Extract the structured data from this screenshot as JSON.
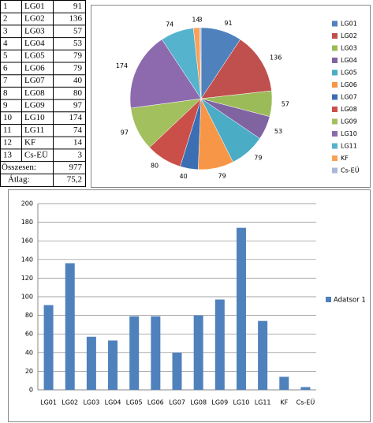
{
  "table": {
    "rows": [
      [
        1,
        "LG01",
        91
      ],
      [
        2,
        "LG02",
        136
      ],
      [
        3,
        "LG03",
        57
      ],
      [
        4,
        "LG04",
        53
      ],
      [
        5,
        "LG05",
        79
      ],
      [
        6,
        "LG06",
        79
      ],
      [
        7,
        "LG07",
        40
      ],
      [
        8,
        "LG08",
        80
      ],
      [
        9,
        "LG09",
        97
      ],
      [
        10,
        "LG10",
        174
      ],
      [
        11,
        "LG11",
        74
      ],
      [
        12,
        "KF",
        14
      ],
      [
        13,
        "Cs-EÜ",
        3
      ]
    ],
    "total_label": "Összesen:",
    "total": 977,
    "average_label": "Átlag:",
    "average": "75,2"
  },
  "chart_data": [
    {
      "type": "pie",
      "categories": [
        "LG01",
        "LG02",
        "LG03",
        "LG04",
        "LG05",
        "LG06",
        "LG07",
        "LG08",
        "LG09",
        "LG10",
        "LG11",
        "KF",
        "Cs-EÜ"
      ],
      "values": [
        91,
        136,
        57,
        53,
        79,
        79,
        40,
        80,
        97,
        174,
        74,
        14,
        3
      ],
      "colors": [
        "#4f81bd",
        "#c0504d",
        "#9bbb59",
        "#8064a2",
        "#4bacc6",
        "#f79646",
        "#3c6eb4",
        "#cb4f49",
        "#a2c05e",
        "#8d6aae",
        "#56b3cd",
        "#f9a158",
        "#a9b9dc"
      ],
      "legend": "right"
    },
    {
      "type": "bar",
      "categories": [
        "LG01",
        "LG02",
        "LG03",
        "LG04",
        "LG05",
        "LG06",
        "LG07",
        "LG08",
        "LG09",
        "LG10",
        "LG11",
        "KF",
        "Cs-EÜ"
      ],
      "series": [
        {
          "name": "Adatsor 1",
          "color": "#4f81bd",
          "values": [
            91,
            136,
            57,
            53,
            79,
            79,
            40,
            80,
            97,
            174,
            74,
            14,
            3
          ]
        }
      ],
      "ylim": [
        0,
        200
      ],
      "yticks": [
        0,
        20,
        40,
        60,
        80,
        100,
        120,
        140,
        160,
        180,
        200
      ],
      "grid": true,
      "legend": "right"
    }
  ]
}
